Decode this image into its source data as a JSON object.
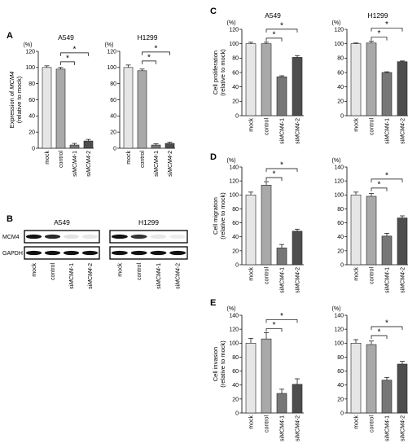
{
  "figure": {
    "panel_labels": [
      "A",
      "B",
      "C",
      "D",
      "E"
    ],
    "percent_unit": "(%)",
    "categories": [
      "mock",
      "control",
      "siMCM4-1",
      "siMCM4-2"
    ],
    "colors": {
      "mock": "#e6e6e6",
      "control": "#a9a9a9",
      "siMCM4-1": "#777777",
      "siMCM4-2": "#4d4d4d"
    }
  },
  "western_blot": {
    "panel": "B",
    "cell_lines": [
      "A549",
      "H1299"
    ],
    "rows": [
      "MCM4",
      "GAPDH"
    ],
    "lanes": [
      "mock",
      "control",
      "siMCM4-1",
      "siMCM4-2"
    ],
    "band_intensity": {
      "A549": {
        "MCM4": [
          1.0,
          0.9,
          0.12,
          0.1
        ],
        "GAPDH": [
          1,
          1,
          1,
          1
        ]
      },
      "H1299": {
        "MCM4": [
          1.0,
          0.85,
          0.1,
          0.08
        ],
        "GAPDH": [
          1,
          1,
          1,
          1
        ]
      }
    }
  },
  "chart_data": [
    {
      "id": "A-A549",
      "panel": "A",
      "type": "bar",
      "title": "A549",
      "ylabel": "Expression of MCM4 (relative to mock)",
      "categories": [
        "mock",
        "control",
        "siMCM4-1",
        "siMCM4-2"
      ],
      "values": [
        100,
        98,
        4,
        9
      ],
      "errors": [
        2,
        2,
        2,
        2
      ],
      "ylim": [
        0,
        120
      ],
      "yticks": [
        0,
        20,
        40,
        60,
        80,
        100,
        120
      ],
      "significance": [
        {
          "from": "control",
          "to": "siMCM4-1",
          "label": "*"
        },
        {
          "from": "control",
          "to": "siMCM4-2",
          "label": "*"
        }
      ]
    },
    {
      "id": "A-H1299",
      "panel": "A",
      "type": "bar",
      "title": "H1299",
      "ylabel": "",
      "categories": [
        "mock",
        "control",
        "siMCM4-1",
        "siMCM4-2"
      ],
      "values": [
        100,
        96,
        4,
        6
      ],
      "errors": [
        3,
        2,
        1.5,
        1.5
      ],
      "ylim": [
        0,
        120
      ],
      "yticks": [
        0,
        20,
        40,
        60,
        80,
        100,
        120
      ],
      "significance": [
        {
          "from": "control",
          "to": "siMCM4-1",
          "label": "*"
        },
        {
          "from": "control",
          "to": "siMCM4-2",
          "label": "*"
        }
      ]
    },
    {
      "id": "C-A549",
      "panel": "C",
      "type": "bar",
      "title": "A549",
      "ylabel": "Cell proliferation (relative to mock)",
      "categories": [
        "mock",
        "control",
        "siMCM4-1",
        "siMCM4-2"
      ],
      "values": [
        100,
        100,
        54,
        81
      ],
      "errors": [
        2,
        2,
        1.5,
        2.5
      ],
      "ylim": [
        0,
        120
      ],
      "yticks": [
        0,
        20,
        40,
        60,
        80,
        100,
        120
      ],
      "significance": [
        {
          "from": "control",
          "to": "siMCM4-1",
          "label": "*"
        },
        {
          "from": "control",
          "to": "siMCM4-2",
          "label": "*"
        }
      ]
    },
    {
      "id": "C-H1299",
      "panel": "C",
      "type": "bar",
      "title": "H1299",
      "ylabel": "",
      "categories": [
        "mock",
        "control",
        "siMCM4-1",
        "siMCM4-2"
      ],
      "values": [
        100,
        101,
        60,
        75
      ],
      "errors": [
        1,
        2.5,
        1,
        1
      ],
      "ylim": [
        0,
        120
      ],
      "yticks": [
        0,
        20,
        40,
        60,
        80,
        100,
        120
      ],
      "significance": [
        {
          "from": "control",
          "to": "siMCM4-1",
          "label": "*"
        },
        {
          "from": "control",
          "to": "siMCM4-2",
          "label": "*"
        }
      ]
    },
    {
      "id": "D-A549",
      "panel": "D",
      "type": "bar",
      "title": "",
      "ylabel": "Cell migration (relative to mock)",
      "categories": [
        "mock",
        "control",
        "siMCM4-1",
        "siMCM4-2"
      ],
      "values": [
        100,
        114,
        24,
        48
      ],
      "errors": [
        4,
        5,
        5,
        3
      ],
      "ylim": [
        0,
        140
      ],
      "yticks": [
        0,
        20,
        40,
        60,
        80,
        100,
        120,
        140
      ],
      "significance": [
        {
          "from": "control",
          "to": "siMCM4-1",
          "label": "*"
        },
        {
          "from": "control",
          "to": "siMCM4-2",
          "label": "*"
        }
      ]
    },
    {
      "id": "D-H1299",
      "panel": "D",
      "type": "bar",
      "title": "",
      "ylabel": "",
      "categories": [
        "mock",
        "control",
        "siMCM4-1",
        "siMCM4-2"
      ],
      "values": [
        100,
        98,
        41,
        67
      ],
      "errors": [
        4,
        4,
        4,
        3
      ],
      "ylim": [
        0,
        140
      ],
      "yticks": [
        0,
        20,
        40,
        60,
        80,
        100,
        120,
        140
      ],
      "significance": [
        {
          "from": "control",
          "to": "siMCM4-1",
          "label": "*"
        },
        {
          "from": "control",
          "to": "siMCM4-2",
          "label": "*"
        }
      ]
    },
    {
      "id": "E-A549",
      "panel": "E",
      "type": "bar",
      "title": "",
      "ylabel": "Cell invasion (relative to mock)",
      "categories": [
        "mock",
        "control",
        "siMCM4-1",
        "siMCM4-2"
      ],
      "values": [
        100,
        106,
        28,
        41
      ],
      "errors": [
        7,
        9,
        6,
        8
      ],
      "ylim": [
        0,
        140
      ],
      "yticks": [
        0,
        20,
        40,
        60,
        80,
        100,
        120,
        140
      ],
      "significance": [
        {
          "from": "control",
          "to": "siMCM4-1",
          "label": "*"
        },
        {
          "from": "control",
          "to": "siMCM4-2",
          "label": "*"
        }
      ]
    },
    {
      "id": "E-H1299",
      "panel": "E",
      "type": "bar",
      "title": "",
      "ylabel": "",
      "categories": [
        "mock",
        "control",
        "siMCM4-1",
        "siMCM4-2"
      ],
      "values": [
        100,
        98,
        47,
        70
      ],
      "errors": [
        5,
        5,
        4,
        4
      ],
      "ylim": [
        0,
        140
      ],
      "yticks": [
        0,
        20,
        40,
        60,
        80,
        100,
        120,
        140
      ],
      "significance": [
        {
          "from": "control",
          "to": "siMCM4-1",
          "label": "*"
        },
        {
          "from": "control",
          "to": "siMCM4-2",
          "label": "*"
        }
      ]
    }
  ]
}
